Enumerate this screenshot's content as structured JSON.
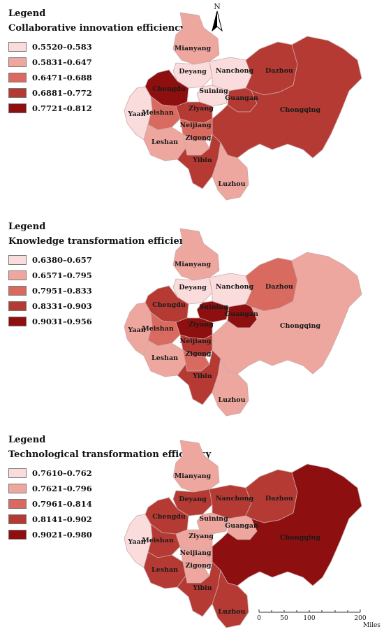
{
  "legend_heading": "Legend",
  "north_label": "N",
  "scale": {
    "ticks": [
      "0",
      "50",
      "100",
      "200"
    ],
    "unit": "Miles"
  },
  "regions": [
    "Mianyang",
    "Deyang",
    "Nanchong",
    "Dazhou",
    "Chengdu",
    "Suining",
    "Guangan",
    "Chongqing",
    "Yaan",
    "Meishan",
    "Ziyang",
    "Neijiang",
    "Leshan",
    "Zigong",
    "Yibin",
    "Luzhou"
  ],
  "chart_data": [
    {
      "type": "choropleth",
      "title": "Collaborative innovation efficiency",
      "classes": [
        "0.5520–0.583",
        "0.5831–0.647",
        "0.6471–0.688",
        "0.6881–0.772",
        "0.7721–0.812"
      ],
      "colors": [
        "#fbdcdc",
        "#eea79f",
        "#d96a5f",
        "#b53a33",
        "#8d0f0f"
      ],
      "class_by_region": {
        "Mianyang": 1,
        "Deyang": 0,
        "Nanchong": 0,
        "Dazhou": 3,
        "Chengdu": 4,
        "Suining": 0,
        "Guangan": 3,
        "Chongqing": 3,
        "Yaan": 0,
        "Meishan": 2,
        "Ziyang": 3,
        "Neijiang": 2,
        "Leshan": 1,
        "Zigong": 1,
        "Yibin": 3,
        "Luzhou": 1
      }
    },
    {
      "type": "choropleth",
      "title": "Knowledge transformation efficiency",
      "classes": [
        "0.6380–0.657",
        "0.6571–0.795",
        "0.7951–0.833",
        "0.8331–0.903",
        "0.9031–0.956"
      ],
      "colors": [
        "#fbdcdc",
        "#eea79f",
        "#d96a5f",
        "#b53a33",
        "#8d0f0f"
      ],
      "class_by_region": {
        "Mianyang": 1,
        "Deyang": 0,
        "Nanchong": 0,
        "Dazhou": 2,
        "Chengdu": 3,
        "Suining": 4,
        "Guangan": 4,
        "Chongqing": 1,
        "Yaan": 1,
        "Meishan": 2,
        "Ziyang": 4,
        "Neijiang": 3,
        "Leshan": 1,
        "Zigong": 2,
        "Yibin": 3,
        "Luzhou": 1
      }
    },
    {
      "type": "choropleth",
      "title": "Technological transformation efficiency",
      "classes": [
        "0.7610–0.762",
        "0.7621–0.796",
        "0.7961–0.814",
        "0.8141–0.902",
        "0.9021–0.980"
      ],
      "colors": [
        "#fbdcdc",
        "#eea79f",
        "#d96a5f",
        "#b53a33",
        "#8d0f0f"
      ],
      "class_by_region": {
        "Mianyang": 1,
        "Deyang": 3,
        "Nanchong": 3,
        "Dazhou": 3,
        "Chengdu": 3,
        "Suining": 1,
        "Guangan": 1,
        "Chongqing": 4,
        "Yaan": 0,
        "Meishan": 3,
        "Ziyang": 1,
        "Neijiang": 1,
        "Leshan": 3,
        "Zigong": 1,
        "Yibin": 3,
        "Luzhou": 3
      }
    }
  ]
}
